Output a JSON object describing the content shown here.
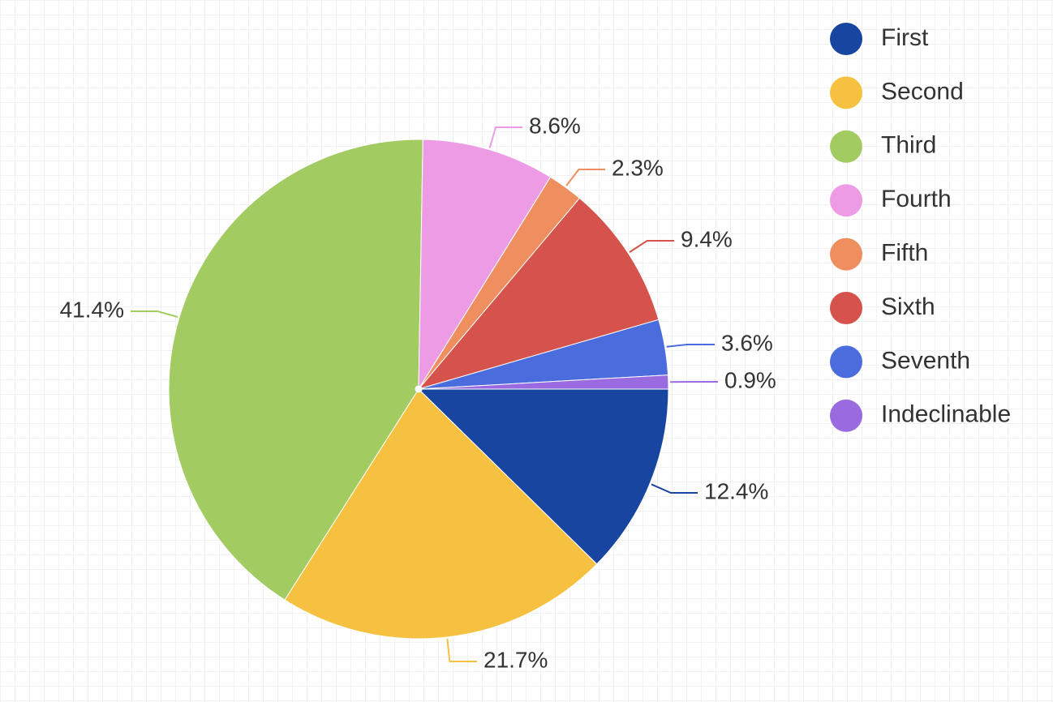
{
  "chart_data": {
    "type": "pie",
    "start_angle_deg": 0,
    "direction": "clockwise",
    "legend_position": "top-right",
    "grid": true,
    "slices": [
      {
        "name": "First",
        "label": "12.4%",
        "value": 12.4,
        "color": "#1845a0"
      },
      {
        "name": "Second",
        "label": "21.7%",
        "value": 21.7,
        "color": "#f6c140"
      },
      {
        "name": "Third",
        "label": "41.4%",
        "value": 41.4,
        "color": "#a2cc62"
      },
      {
        "name": "Fourth",
        "label": "8.6%",
        "value": 8.6,
        "color": "#ee9be6"
      },
      {
        "name": "Fifth",
        "label": "2.3%",
        "value": 2.3,
        "color": "#ef8e5e"
      },
      {
        "name": "Sixth",
        "label": "9.4%",
        "value": 9.4,
        "color": "#d5534c"
      },
      {
        "name": "Seventh",
        "label": "3.6%",
        "value": 3.6,
        "color": "#4a6cdd"
      },
      {
        "name": "Indeclinable",
        "label": "0.9%",
        "value": 0.9,
        "color": "#9a6ae0"
      }
    ]
  }
}
